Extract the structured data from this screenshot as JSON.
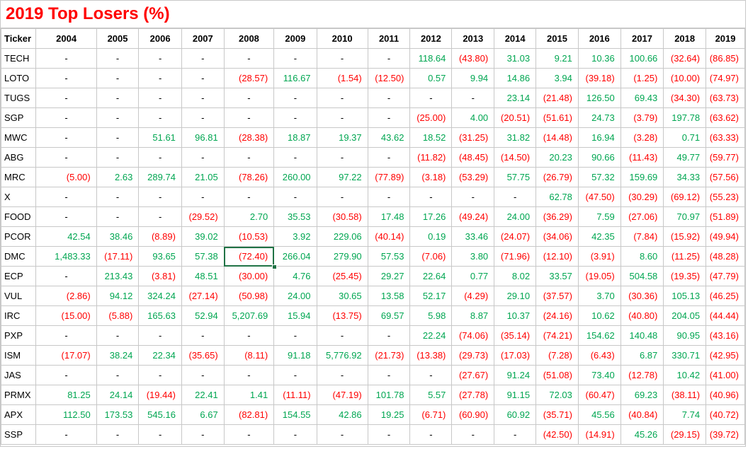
{
  "title": "2019 Top Losers (%)",
  "colors": {
    "title": "#ff0000",
    "positive": "#00a651",
    "negative": "#ff0000",
    "selection": "#217346"
  },
  "headers": [
    "Ticker",
    "2004",
    "2005",
    "2006",
    "2007",
    "2008",
    "2009",
    "2010",
    "2011",
    "2012",
    "2013",
    "2014",
    "2015",
    "2016",
    "2017",
    "2018",
    "2019"
  ],
  "rows": [
    [
      "TECH",
      "-",
      "-",
      "-",
      "-",
      "-",
      "-",
      "-",
      "-",
      "118.64",
      "(43.80)",
      "31.03",
      "9.21",
      "10.36",
      "100.66",
      "(32.64)",
      "(86.85)"
    ],
    [
      "LOTO",
      "-",
      "-",
      "-",
      "-",
      "(28.57)",
      "116.67",
      "(1.54)",
      "(12.50)",
      "0.57",
      "9.94",
      "14.86",
      "3.94",
      "(39.18)",
      "(1.25)",
      "(10.00)",
      "(74.97)"
    ],
    [
      "TUGS",
      "-",
      "-",
      "-",
      "-",
      "-",
      "-",
      "-",
      "-",
      "-",
      "-",
      "23.14",
      "(21.48)",
      "126.50",
      "69.43",
      "(34.30)",
      "(63.73)"
    ],
    [
      "SGP",
      "-",
      "-",
      "-",
      "-",
      "-",
      "-",
      "-",
      "-",
      "(25.00)",
      "4.00",
      "(20.51)",
      "(51.61)",
      "24.73",
      "(3.79)",
      "197.78",
      "(63.62)"
    ],
    [
      "MWC",
      "-",
      "-",
      "51.61",
      "96.81",
      "(28.38)",
      "18.87",
      "19.37",
      "43.62",
      "18.52",
      "(31.25)",
      "31.82",
      "(14.48)",
      "16.94",
      "(3.28)",
      "0.71",
      "(63.33)"
    ],
    [
      "ABG",
      "-",
      "-",
      "-",
      "-",
      "-",
      "-",
      "-",
      "-",
      "(11.82)",
      "(48.45)",
      "(14.50)",
      "20.23",
      "90.66",
      "(11.43)",
      "49.77",
      "(59.77)"
    ],
    [
      "MRC",
      "(5.00)",
      "2.63",
      "289.74",
      "21.05",
      "(78.26)",
      "260.00",
      "97.22",
      "(77.89)",
      "(3.18)",
      "(53.29)",
      "57.75",
      "(26.79)",
      "57.32",
      "159.69",
      "34.33",
      "(57.56)"
    ],
    [
      "X",
      "-",
      "-",
      "-",
      "-",
      "-",
      "-",
      "-",
      "-",
      "-",
      "-",
      "-",
      "62.78",
      "(47.50)",
      "(30.29)",
      "(69.12)",
      "(55.23)"
    ],
    [
      "FOOD",
      "-",
      "-",
      "-",
      "(29.52)",
      "2.70",
      "35.53",
      "(30.58)",
      "17.48",
      "17.26",
      "(49.24)",
      "24.00",
      "(36.29)",
      "7.59",
      "(27.06)",
      "70.97",
      "(51.89)"
    ],
    [
      "PCOR",
      "42.54",
      "38.46",
      "(8.89)",
      "39.02",
      "(10.53)",
      "3.92",
      "229.06",
      "(40.14)",
      "0.19",
      "33.46",
      "(24.07)",
      "(34.06)",
      "42.35",
      "(7.84)",
      "(15.92)",
      "(49.94)"
    ],
    [
      "DMC",
      "1,483.33",
      "(17.11)",
      "93.65",
      "57.38",
      "(72.40)",
      "266.04",
      "279.90",
      "57.53",
      "(7.06)",
      "3.80",
      "(71.96)",
      "(12.10)",
      "(3.91)",
      "8.60",
      "(11.25)",
      "(48.28)"
    ],
    [
      "ECP",
      "-",
      "213.43",
      "(3.81)",
      "48.51",
      "(30.00)",
      "4.76",
      "(25.45)",
      "29.27",
      "22.64",
      "0.77",
      "8.02",
      "33.57",
      "(19.05)",
      "504.58",
      "(19.35)",
      "(47.79)"
    ],
    [
      "VUL",
      "(2.86)",
      "94.12",
      "324.24",
      "(27.14)",
      "(50.98)",
      "24.00",
      "30.65",
      "13.58",
      "52.17",
      "(4.29)",
      "29.10",
      "(37.57)",
      "3.70",
      "(30.36)",
      "105.13",
      "(46.25)"
    ],
    [
      "IRC",
      "(15.00)",
      "(5.88)",
      "165.63",
      "52.94",
      "5,207.69",
      "15.94",
      "(13.75)",
      "69.57",
      "5.98",
      "8.87",
      "10.37",
      "(24.16)",
      "10.62",
      "(40.80)",
      "204.05",
      "(44.44)"
    ],
    [
      "PXP",
      "-",
      "-",
      "-",
      "-",
      "-",
      "-",
      "-",
      "-",
      "22.24",
      "(74.06)",
      "(35.14)",
      "(74.21)",
      "154.62",
      "140.48",
      "90.95",
      "(43.16)"
    ],
    [
      "ISM",
      "(17.07)",
      "38.24",
      "22.34",
      "(35.65)",
      "(8.11)",
      "91.18",
      "5,776.92",
      "(21.73)",
      "(13.38)",
      "(29.73)",
      "(17.03)",
      "(7.28)",
      "(6.43)",
      "6.87",
      "330.71",
      "(42.95)"
    ],
    [
      "JAS",
      "-",
      "-",
      "-",
      "-",
      "-",
      "-",
      "-",
      "-",
      "-",
      "(27.67)",
      "91.24",
      "(51.08)",
      "73.40",
      "(12.78)",
      "10.42",
      "(41.00)"
    ],
    [
      "PRMX",
      "81.25",
      "24.14",
      "(19.44)",
      "22.41",
      "1.41",
      "(11.11)",
      "(47.19)",
      "101.78",
      "5.57",
      "(27.78)",
      "91.15",
      "72.03",
      "(60.47)",
      "69.23",
      "(38.11)",
      "(40.96)"
    ],
    [
      "APX",
      "112.50",
      "173.53",
      "545.16",
      "6.67",
      "(82.81)",
      "154.55",
      "42.86",
      "19.25",
      "(6.71)",
      "(60.90)",
      "60.92",
      "(35.71)",
      "45.56",
      "(40.84)",
      "7.74",
      "(40.72)"
    ],
    [
      "SSP",
      "-",
      "-",
      "-",
      "-",
      "-",
      "-",
      "-",
      "-",
      "-",
      "-",
      "-",
      "(42.50)",
      "(14.91)",
      "45.26",
      "(29.15)",
      "(39.72)"
    ]
  ],
  "selected_cell": {
    "row_ticker": "DMC",
    "column": "2008"
  }
}
